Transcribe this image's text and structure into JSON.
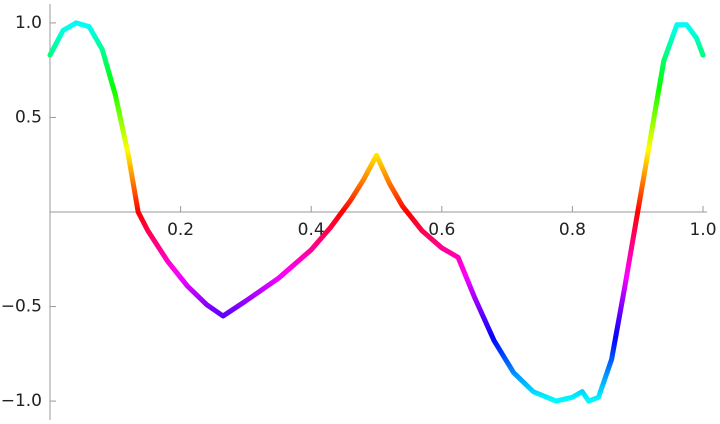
{
  "chart_data": {
    "type": "line",
    "x": [
      0,
      0.02,
      0.04,
      0.06,
      0.08,
      0.1,
      0.12,
      0.135,
      0.15,
      0.18,
      0.21,
      0.24,
      0.265,
      0.3,
      0.35,
      0.4,
      0.43,
      0.46,
      0.48,
      0.5,
      0.52,
      0.54,
      0.57,
      0.6,
      0.625,
      0.65,
      0.68,
      0.71,
      0.74,
      0.775,
      0.8,
      0.815,
      0.825,
      0.84,
      0.86,
      0.88,
      0.9,
      0.92,
      0.94,
      0.96,
      0.975,
      0.99,
      1.0
    ],
    "values": [
      0.83,
      0.96,
      1.0,
      0.98,
      0.86,
      0.62,
      0.3,
      0.0,
      -0.1,
      -0.26,
      -0.39,
      -0.49,
      -0.55,
      -0.47,
      -0.35,
      -0.2,
      -0.08,
      0.06,
      0.17,
      0.3,
      0.15,
      0.03,
      -0.1,
      -0.19,
      -0.24,
      -0.45,
      -0.68,
      -0.85,
      -0.95,
      -1.0,
      -0.98,
      -0.95,
      -1.0,
      -0.98,
      -0.78,
      -0.4,
      0.0,
      0.4,
      0.8,
      0.99,
      0.99,
      0.92,
      0.83
    ],
    "xlim": [
      0,
      1
    ],
    "ylim": [
      -1.1,
      1.1
    ],
    "xticks": [
      {
        "value": 0.2,
        "label": "0.2"
      },
      {
        "value": 0.4,
        "label": "0.4"
      },
      {
        "value": 0.6,
        "label": "0.6"
      },
      {
        "value": 0.8,
        "label": "0.8"
      },
      {
        "value": 1.0,
        "label": "1.0"
      }
    ],
    "yticks": [
      {
        "value": -1.0,
        "label": "−1.0"
      },
      {
        "value": -0.5,
        "label": "−0.5"
      },
      {
        "value": 0.5,
        "label": "0.5"
      },
      {
        "value": 1.0,
        "label": "1.0"
      }
    ],
    "color_by": "hue"
  }
}
